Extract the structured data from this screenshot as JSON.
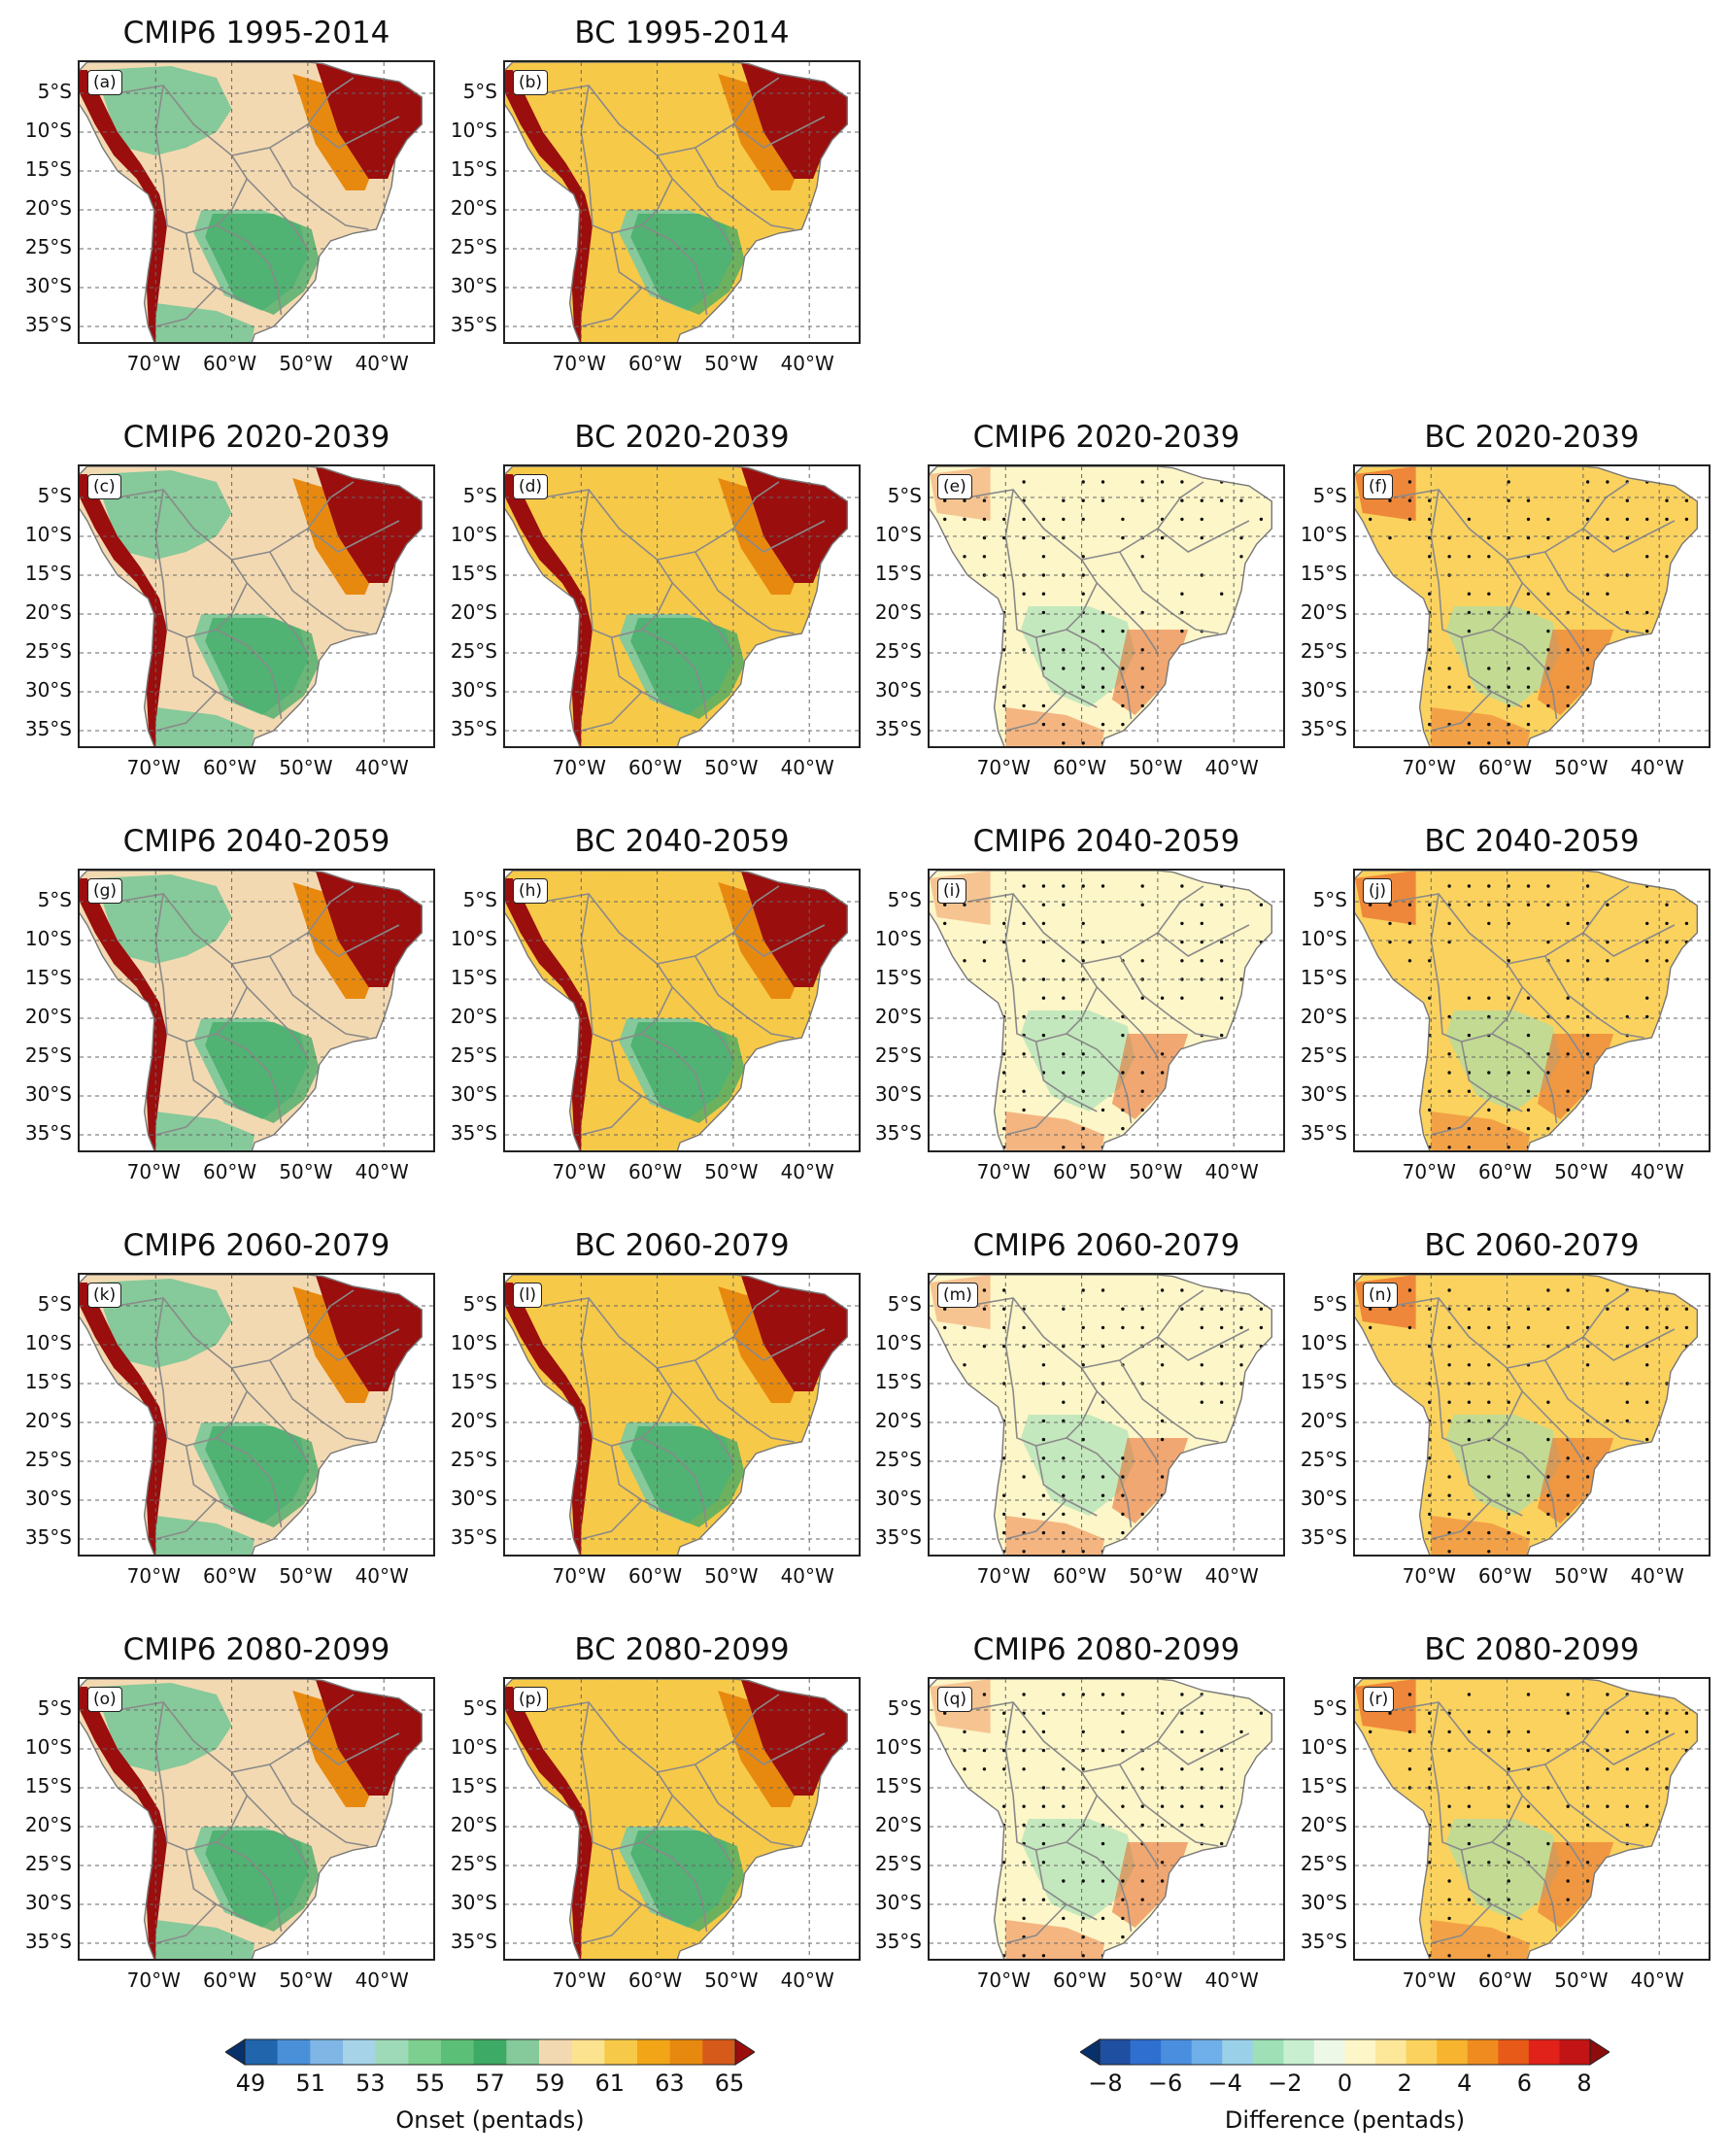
{
  "lat_ticks": [
    "5°S",
    "10°S",
    "15°S",
    "20°S",
    "25°S",
    "30°S",
    "35°S"
  ],
  "lon_ticks": [
    "70°W",
    "60°W",
    "50°W",
    "40°W"
  ],
  "panels": [
    {
      "label": "(a)",
      "title": "CMIP6 1995-2014",
      "kind": "onset",
      "col": 0,
      "row": 0
    },
    {
      "label": "(b)",
      "title": "BC 1995-2014",
      "kind": "onset",
      "col": 1,
      "row": 0
    },
    {
      "label": "(c)",
      "title": "CMIP6 2020-2039",
      "kind": "onset",
      "col": 0,
      "row": 1
    },
    {
      "label": "(d)",
      "title": "BC 2020-2039",
      "kind": "onset",
      "col": 1,
      "row": 1
    },
    {
      "label": "(e)",
      "title": "CMIP6 2020-2039",
      "kind": "diff",
      "col": 2,
      "row": 1
    },
    {
      "label": "(f)",
      "title": "BC 2020-2039",
      "kind": "diff",
      "col": 3,
      "row": 1
    },
    {
      "label": "(g)",
      "title": "CMIP6 2040-2059",
      "kind": "onset",
      "col": 0,
      "row": 2
    },
    {
      "label": "(h)",
      "title": "BC 2040-2059",
      "kind": "onset",
      "col": 1,
      "row": 2
    },
    {
      "label": "(i)",
      "title": "CMIP6 2040-2059",
      "kind": "diff",
      "col": 2,
      "row": 2
    },
    {
      "label": "(j)",
      "title": "BC 2040-2059",
      "kind": "diff",
      "col": 3,
      "row": 2
    },
    {
      "label": "(k)",
      "title": "CMIP6 2060-2079",
      "kind": "onset",
      "col": 0,
      "row": 3
    },
    {
      "label": "(l)",
      "title": "BC 2060-2079",
      "kind": "onset",
      "col": 1,
      "row": 3
    },
    {
      "label": "(m)",
      "title": "CMIP6 2060-2079",
      "kind": "diff",
      "col": 2,
      "row": 3
    },
    {
      "label": "(n)",
      "title": "BC 2060-2079",
      "kind": "diff",
      "col": 3,
      "row": 3
    },
    {
      "label": "(o)",
      "title": "CMIP6 2080-2099",
      "kind": "onset",
      "col": 0,
      "row": 4
    },
    {
      "label": "(p)",
      "title": "BC 2080-2099",
      "kind": "onset",
      "col": 1,
      "row": 4
    },
    {
      "label": "(q)",
      "title": "CMIP6 2080-2099",
      "kind": "diff",
      "col": 2,
      "row": 4
    },
    {
      "label": "(r)",
      "title": "BC 2080-2099",
      "kind": "diff",
      "col": 3,
      "row": 4
    }
  ],
  "colorbars": {
    "onset": {
      "label": "Onset (pentads)",
      "ticks": [
        "49",
        "51",
        "53",
        "55",
        "57",
        "59",
        "61",
        "63",
        "65"
      ],
      "colors": [
        "#08306b",
        "#2166ac",
        "#4a90d9",
        "#7fb6e6",
        "#a6d3e8",
        "#9ed9b8",
        "#7dcf8f",
        "#5cbf78",
        "#3daa66",
        "#86c99a",
        "#f3d9b1",
        "#fbe38f",
        "#f7c948",
        "#f2a516",
        "#e8890f",
        "#d65a1a",
        "#9a0e0e"
      ]
    },
    "diff": {
      "label": "Difference (pentads)",
      "ticks": [
        "−8",
        "−6",
        "−4",
        "−2",
        "0",
        "2",
        "4",
        "6",
        "8"
      ],
      "colors": [
        "#08306b",
        "#1f4fa0",
        "#2f6fcf",
        "#4a8ee0",
        "#6fb0ea",
        "#9bd1e8",
        "#9fe0b6",
        "#c8f0d0",
        "#eef8e6",
        "#fdf6c8",
        "#fde89a",
        "#fbd25e",
        "#f6b42f",
        "#f08c1f",
        "#e85a17",
        "#e0221a",
        "#c21414",
        "#8e0c0c"
      ]
    }
  },
  "colors": {
    "onset_wet": "#3daa66",
    "onset_mid": "#86c99a",
    "onset_dry": "#f3d9b1",
    "onset_late": "#f7c948",
    "onset_later": "#e8890f",
    "onset_latest": "#9a0e0e",
    "diff_neg": "#9fe0b6",
    "diff_zero": "#fdf6c8",
    "diff_pos": "#fbd25e",
    "diff_high": "#e8662a",
    "ocean": "#ffffff",
    "border": "#8a8a8a"
  }
}
